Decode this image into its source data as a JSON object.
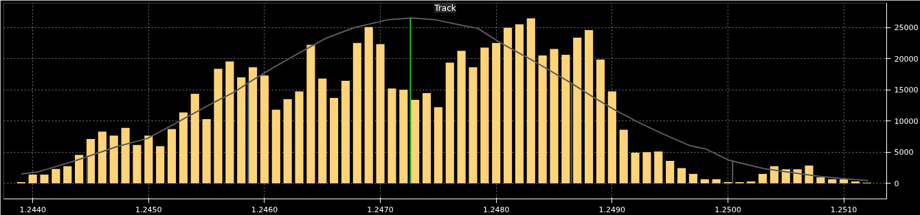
{
  "chart_data": {
    "type": "histogram",
    "bins": [
      1.24385,
      1.24395,
      1.24405,
      1.24415,
      1.24425,
      1.24435,
      1.24445,
      1.24455,
      1.24465,
      1.24475,
      1.24485,
      1.24495,
      1.24505,
      1.24515,
      1.24525,
      1.24535,
      1.24545,
      1.24555,
      1.24565,
      1.24575,
      1.24585,
      1.24595,
      1.24605,
      1.24615,
      1.24625,
      1.24635,
      1.24645,
      1.24655,
      1.24665,
      1.24675,
      1.24685,
      1.24695,
      1.24705,
      1.24715,
      1.24725,
      1.24735,
      1.24745,
      1.24755,
      1.24765,
      1.24775,
      1.24785,
      1.24795,
      1.24805,
      1.24815,
      1.24825,
      1.24835,
      1.24845,
      1.24855,
      1.24865,
      1.24875,
      1.24885,
      1.24895,
      1.24905,
      1.24915,
      1.24925,
      1.24935,
      1.24945,
      1.24955,
      1.24965,
      1.24975,
      1.24985,
      1.24995,
      1.25005,
      1.25015,
      1.25025,
      1.25035,
      1.25045,
      1.25055,
      1.25065,
      1.25075,
      1.25085,
      1.25095,
      1.25105,
      1.25115,
      1.25125
    ],
    "series": [
      {
        "color": "#ffd479",
        "values": [
          200,
          1400,
          1400,
          2300,
          2750,
          4550,
          7100,
          8300,
          7650,
          8900,
          6150,
          7650,
          5950,
          8700,
          11350,
          14350,
          10300,
          18350,
          19550,
          17000,
          18600,
          17300,
          11800,
          13500,
          14750,
          22200,
          16800,
          13700,
          16450,
          22500,
          25050,
          22300,
          15200,
          15000,
          13400,
          14450,
          12200,
          19350,
          21250,
          18600,
          21750,
          22500,
          24950,
          25500,
          26450,
          20500,
          21550,
          20600,
          23350,
          24550,
          19850,
          14750,
          8600,
          4900,
          5000,
          5100,
          3600,
          2450,
          1500,
          650,
          650,
          200,
          200,
          300,
          1500,
          2750,
          2250,
          2250,
          2850,
          950,
          650,
          650,
          300,
          100
        ]
      },
      {
        "type": "line",
        "color": "#5a5a5a",
        "x": [
          1.2439,
          1.24404,
          1.24437,
          1.24473,
          1.24499,
          1.24528,
          1.24556,
          1.24574,
          1.24588,
          1.24608,
          1.24628,
          1.24653,
          1.24677,
          1.24707,
          1.24727,
          1.24747,
          1.24771,
          1.24784,
          1.24804,
          1.24832,
          1.24864,
          1.24884,
          1.24903,
          1.24923,
          1.24943,
          1.24967,
          1.24981,
          1.25001,
          1.25031,
          1.2506,
          1.2508,
          1.251,
          1.25121
        ],
        "values": [
          1500,
          1800,
          3650,
          5900,
          7200,
          10100,
          12950,
          14650,
          16350,
          18600,
          20700,
          23250,
          24950,
          26250,
          26500,
          26250,
          25300,
          24850,
          22500,
          19650,
          16150,
          13800,
          11700,
          9750,
          8000,
          6050,
          5500,
          3700,
          2350,
          1600,
          1100,
          750,
          450
        ]
      }
    ],
    "xlim": [
      1.24375,
      1.25137
    ],
    "xticks": [
      {
        "value": 1.244,
        "label": "1.2440"
      },
      {
        "value": 1.245,
        "label": "1.2450"
      },
      {
        "value": 1.246,
        "label": "1.2460"
      },
      {
        "value": 1.247,
        "label": "1.2470"
      },
      {
        "value": 1.248,
        "label": "1.2480"
      },
      {
        "value": 1.249,
        "label": "1.2490"
      },
      {
        "value": 1.25,
        "label": "1.2500"
      },
      {
        "value": 1.251,
        "label": "1.2510"
      }
    ],
    "ylim": [
      -2500,
      28900
    ],
    "yticks": [
      0,
      5000,
      10000,
      15000,
      20000,
      25000
    ],
    "ref_lines": [
      {
        "axis": "x",
        "value": 1.24726,
        "color": "#22c022"
      },
      {
        "axis": "x",
        "value": 1.24447,
        "color": "#5a5a5a"
      },
      {
        "axis": "x",
        "value": 1.24586,
        "color": "#5a5a5a"
      },
      {
        "axis": "x",
        "value": 1.24865,
        "color": "#5a5a5a"
      },
      {
        "axis": "x",
        "value": 1.25004,
        "color": "#5a5a5a"
      }
    ],
    "annotations": [
      "Track"
    ],
    "grid": true
  }
}
